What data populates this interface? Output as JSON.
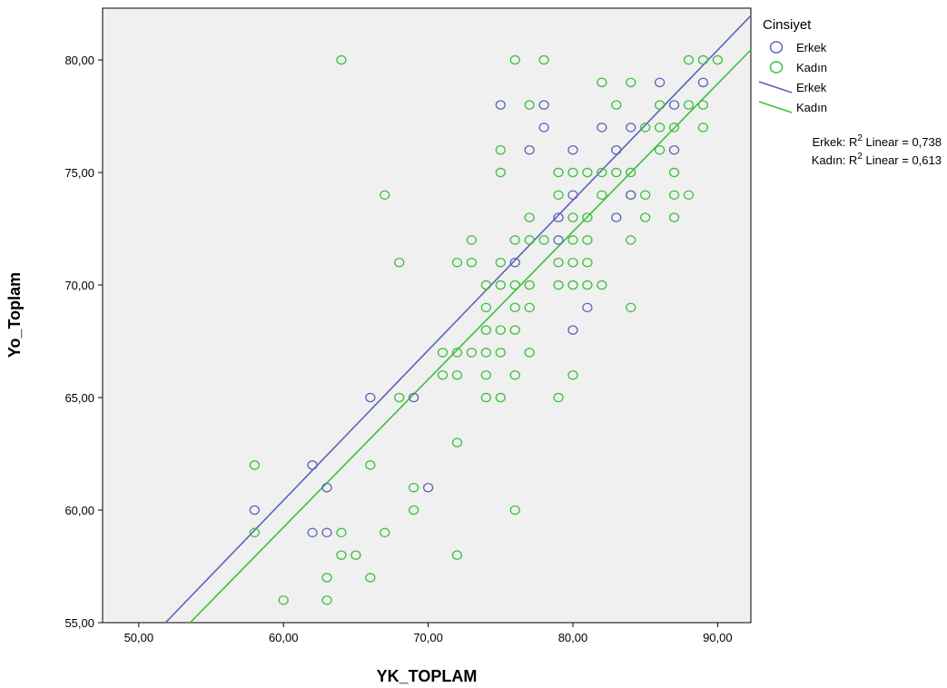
{
  "chart_data": {
    "type": "scatter",
    "xlabel": "YK_TOPLAM",
    "ylabel": "Yo_Toplam",
    "xlim": [
      47.5,
      92.3
    ],
    "ylim": [
      55,
      82.3
    ],
    "xticks": [
      50,
      60,
      70,
      80,
      90
    ],
    "yticks": [
      55,
      60,
      65,
      70,
      75,
      80
    ],
    "xtick_labels": [
      "50,00",
      "60,00",
      "70,00",
      "80,00",
      "90,00"
    ],
    "ytick_labels": [
      "55,00",
      "60,00",
      "65,00",
      "70,00",
      "75,00",
      "80,00"
    ],
    "plot_background": "#f0f0f0",
    "grid": false,
    "legend": {
      "title": "Cinsiyet",
      "position": "right",
      "items": [
        {
          "label": "Erkek",
          "kind": "marker",
          "series": 0
        },
        {
          "label": "Kadın",
          "kind": "marker",
          "series": 1
        },
        {
          "label": "Erkek",
          "kind": "line",
          "series": 0
        },
        {
          "label": "Kadın",
          "kind": "line",
          "series": 1
        }
      ]
    },
    "r2_annotations": [
      {
        "prefix": "Erkek: R",
        "sup": "2",
        "suffix": " Linear = 0,738"
      },
      {
        "prefix": "Kadın: R",
        "sup": "2",
        "suffix": " Linear = 0,613"
      }
    ],
    "series": [
      {
        "name": "Erkek",
        "color": "#5b63b8",
        "fit": {
          "x": [
            51.85,
            92.3
          ],
          "y": [
            55,
            81.97
          ]
        },
        "points": [
          [
            58,
            60
          ],
          [
            62,
            62
          ],
          [
            62,
            59
          ],
          [
            63,
            59
          ],
          [
            63,
            61
          ],
          [
            66,
            65
          ],
          [
            69,
            65
          ],
          [
            70,
            61
          ],
          [
            75,
            78
          ],
          [
            76,
            71
          ],
          [
            77,
            76
          ],
          [
            78,
            77
          ],
          [
            78,
            78
          ],
          [
            79,
            72
          ],
          [
            79,
            73
          ],
          [
            80,
            76
          ],
          [
            80,
            74
          ],
          [
            80,
            68
          ],
          [
            81,
            69
          ],
          [
            82,
            77
          ],
          [
            83,
            76
          ],
          [
            83,
            73
          ],
          [
            84,
            77
          ],
          [
            84,
            74
          ],
          [
            86,
            79
          ],
          [
            87,
            78
          ],
          [
            87,
            76
          ],
          [
            89,
            79
          ]
        ]
      },
      {
        "name": "Kadın",
        "color": "#3cbf3c",
        "fit": {
          "x": [
            53.55,
            92.3
          ],
          "y": [
            55,
            80.45
          ]
        },
        "points": [
          [
            58,
            62
          ],
          [
            58,
            59
          ],
          [
            60,
            56
          ],
          [
            63,
            57
          ],
          [
            63,
            56
          ],
          [
            64,
            58
          ],
          [
            64,
            59
          ],
          [
            64,
            80
          ],
          [
            65,
            58
          ],
          [
            66,
            57
          ],
          [
            66,
            62
          ],
          [
            67,
            74
          ],
          [
            67,
            59
          ],
          [
            68,
            71
          ],
          [
            68,
            65
          ],
          [
            69,
            61
          ],
          [
            69,
            60
          ],
          [
            71,
            67
          ],
          [
            71,
            66
          ],
          [
            72,
            71
          ],
          [
            72,
            67
          ],
          [
            72,
            66
          ],
          [
            72,
            63
          ],
          [
            72,
            58
          ],
          [
            73,
            72
          ],
          [
            73,
            71
          ],
          [
            73,
            67
          ],
          [
            74,
            70
          ],
          [
            74,
            69
          ],
          [
            74,
            68
          ],
          [
            74,
            67
          ],
          [
            74,
            66
          ],
          [
            74,
            65
          ],
          [
            75,
            76
          ],
          [
            75,
            75
          ],
          [
            75,
            71
          ],
          [
            75,
            70
          ],
          [
            75,
            68
          ],
          [
            75,
            67
          ],
          [
            75,
            65
          ],
          [
            76,
            80
          ],
          [
            76,
            72
          ],
          [
            76,
            70
          ],
          [
            76,
            69
          ],
          [
            76,
            68
          ],
          [
            76,
            66
          ],
          [
            76,
            60
          ],
          [
            77,
            78
          ],
          [
            77,
            73
          ],
          [
            77,
            72
          ],
          [
            77,
            70
          ],
          [
            77,
            69
          ],
          [
            77,
            67
          ],
          [
            78,
            80
          ],
          [
            78,
            72
          ],
          [
            79,
            75
          ],
          [
            79,
            74
          ],
          [
            79,
            71
          ],
          [
            79,
            70
          ],
          [
            79,
            65
          ],
          [
            80,
            75
          ],
          [
            80,
            73
          ],
          [
            80,
            72
          ],
          [
            80,
            71
          ],
          [
            80,
            70
          ],
          [
            80,
            66
          ],
          [
            81,
            75
          ],
          [
            81,
            73
          ],
          [
            81,
            72
          ],
          [
            81,
            71
          ],
          [
            81,
            70
          ],
          [
            82,
            79
          ],
          [
            82,
            75
          ],
          [
            82,
            74
          ],
          [
            82,
            70
          ],
          [
            83,
            78
          ],
          [
            83,
            75
          ],
          [
            84,
            79
          ],
          [
            84,
            75
          ],
          [
            84,
            74
          ],
          [
            84,
            72
          ],
          [
            84,
            69
          ],
          [
            85,
            77
          ],
          [
            85,
            74
          ],
          [
            85,
            73
          ],
          [
            86,
            78
          ],
          [
            86,
            77
          ],
          [
            86,
            76
          ],
          [
            87,
            77
          ],
          [
            87,
            75
          ],
          [
            87,
            74
          ],
          [
            87,
            73
          ],
          [
            88,
            80
          ],
          [
            88,
            78
          ],
          [
            88,
            74
          ],
          [
            89,
            80
          ],
          [
            89,
            78
          ],
          [
            89,
            77
          ],
          [
            90,
            80
          ]
        ]
      }
    ]
  }
}
